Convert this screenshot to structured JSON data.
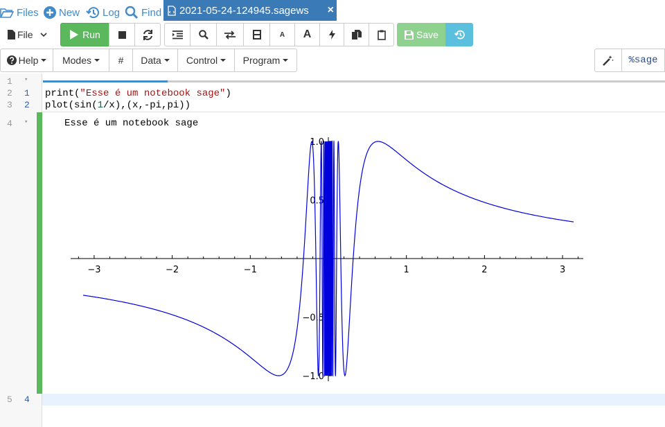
{
  "topnav": {
    "files": "Files",
    "new": "New",
    "log": "Log",
    "find": "Find",
    "tab_title": "2021-05-24-124945.sagews",
    "close": "×"
  },
  "toolbar": {
    "file": "File",
    "run": "Run",
    "save": "Save",
    "small_a": "A",
    "big_a": "A"
  },
  "menubar": {
    "help": "Help",
    "modes": "Modes",
    "hash": "#",
    "data": "Data",
    "control": "Control",
    "program": "Program",
    "mode_label": "%sage"
  },
  "editor": {
    "line_numbers": [
      "1",
      "2",
      "3",
      "4",
      "5"
    ],
    "cell_numbers": [
      "1",
      "2",
      "4"
    ],
    "code_line1": "print(\"Esse é um notebook sage\")",
    "code_line2": "plot(sin(1/x),(x,-pi,pi))",
    "output_text": "Esse é um notebook sage",
    "progress": 0.2
  },
  "colors": {
    "accent": "#428bca",
    "run": "#5cb85c",
    "curve": "#0000dd"
  },
  "chart_data": {
    "type": "line",
    "function": "sin(1/x)",
    "xlim": [
      -3.14159,
      3.14159
    ],
    "ylim": [
      -1.0,
      1.0
    ],
    "xticks": [
      "−3",
      "−2",
      "−1",
      "1",
      "2",
      "3"
    ],
    "xtick_values": [
      -3,
      -2,
      -1,
      1,
      2,
      3
    ],
    "yticks": [
      "1.0",
      "0.5",
      "−0.5",
      "−1.0"
    ],
    "ytick_values": [
      1.0,
      0.5,
      -0.5,
      -1.0
    ],
    "series": [
      {
        "function": "sin(1/x)"
      }
    ]
  }
}
